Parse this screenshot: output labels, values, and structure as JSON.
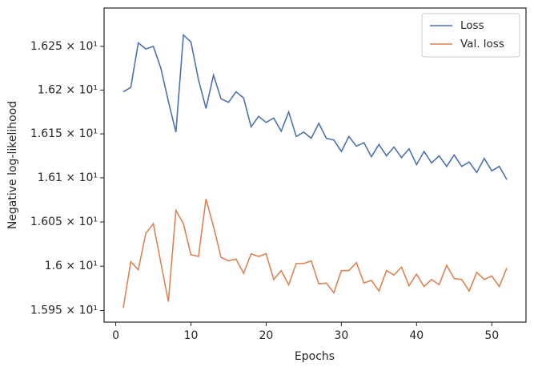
{
  "chart_data": {
    "type": "line",
    "xlabel": "Epochs",
    "ylabel": "Negative log-likelihood",
    "x": [
      1,
      2,
      3,
      4,
      5,
      6,
      7,
      8,
      9,
      10,
      11,
      12,
      13,
      14,
      15,
      16,
      17,
      18,
      19,
      20,
      21,
      22,
      23,
      24,
      25,
      26,
      27,
      28,
      29,
      30,
      31,
      32,
      33,
      34,
      35,
      36,
      37,
      38,
      39,
      40,
      41,
      42,
      43,
      44,
      45,
      46,
      47,
      48,
      49,
      50,
      51,
      52
    ],
    "series": [
      {
        "name": "Loss",
        "color": "#4c72b0",
        "values": [
          16.198,
          16.203,
          16.254,
          16.247,
          16.25,
          16.225,
          16.187,
          16.152,
          16.263,
          16.255,
          16.212,
          16.179,
          16.217,
          16.19,
          16.186,
          16.198,
          16.191,
          16.158,
          16.17,
          16.163,
          16.168,
          16.153,
          16.175,
          16.147,
          16.152,
          16.145,
          16.162,
          16.145,
          16.143,
          16.13,
          16.147,
          16.136,
          16.14,
          16.124,
          16.138,
          16.125,
          16.135,
          16.123,
          16.133,
          16.115,
          16.13,
          16.117,
          16.125,
          16.113,
          16.126,
          16.113,
          16.118,
          16.106,
          16.122,
          16.108,
          16.113,
          16.098
        ]
      },
      {
        "name": "Val. loss",
        "color": "#dd8452",
        "values": [
          15.953,
          16.005,
          15.996,
          16.037,
          16.048,
          16.004,
          15.96,
          16.063,
          16.048,
          16.013,
          16.011,
          16.076,
          16.045,
          16.01,
          16.006,
          16.008,
          15.992,
          16.014,
          16.011,
          16.014,
          15.985,
          15.995,
          15.979,
          16.003,
          16.003,
          16.006,
          15.98,
          15.981,
          15.97,
          15.995,
          15.995,
          16.004,
          15.981,
          15.984,
          15.972,
          15.995,
          15.99,
          15.999,
          15.978,
          15.991,
          15.977,
          15.985,
          15.979,
          16.001,
          15.986,
          15.985,
          15.972,
          15.993,
          15.985,
          15.989,
          15.977,
          15.998
        ]
      }
    ],
    "xlim": [
      -1.55,
      54.55
    ],
    "xticks": [
      0,
      10,
      20,
      30,
      40,
      50
    ],
    "ylim": [
      15.937,
      16.294
    ],
    "yscale": "log",
    "yticks": [
      {
        "value": 15.95,
        "label": "1.595 × 10¹"
      },
      {
        "value": 16.0,
        "label": "1.6 × 10¹"
      },
      {
        "value": 16.05,
        "label": "1.605 × 10¹"
      },
      {
        "value": 16.1,
        "label": "1.61 × 10¹"
      },
      {
        "value": 16.15,
        "label": "1.615 × 10¹"
      },
      {
        "value": 16.2,
        "label": "1.62 × 10¹"
      },
      {
        "value": 16.25,
        "label": "1.625 × 10¹"
      }
    ],
    "grid": false,
    "legend": "upper right"
  }
}
